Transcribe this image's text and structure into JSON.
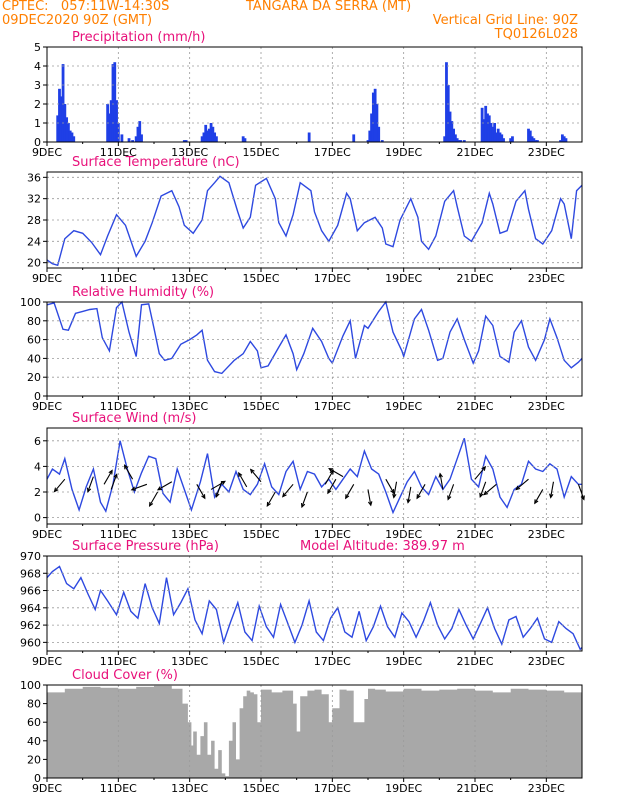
{
  "header": {
    "left1": "CPTEC:   057:11W-14:30S",
    "center1": "TANGARA DA SERRA (MT)",
    "left2": "09DEC2020 90Z (GMT)",
    "right2": "Vertical Grid Line: 90Z",
    "right3": "TQ0126L028"
  },
  "colors": {
    "header": "#ff7f00",
    "title": "#e8107a",
    "line": "#2e49e0",
    "bar": "#1f3fe6",
    "cloud": "#a8a8a8",
    "grid": "#9a9a9a",
    "arrow": "#000000"
  },
  "x_tick_labels": [
    "9DEC",
    "11DEC",
    "13DEC",
    "15DEC",
    "17DEC",
    "19DEC",
    "21DEC",
    "23DEC"
  ],
  "chart_data": [
    {
      "id": "precip",
      "type": "bar",
      "title": "Precipitation (mm/h)",
      "ylim": [
        0,
        5
      ],
      "yticks": [
        0,
        1,
        2,
        3,
        4,
        5
      ],
      "grid": true,
      "x_start": 0,
      "x_end": 15,
      "x_unit": "days since 9DEC 00Z",
      "x": [
        0.3,
        0.35,
        0.4,
        0.45,
        0.5,
        0.55,
        0.6,
        0.65,
        0.7,
        0.75,
        1.7,
        1.75,
        1.8,
        1.85,
        1.9,
        1.95,
        2.0,
        2.1,
        2.3,
        2.4,
        2.5,
        2.55,
        2.6,
        2.65,
        3.85,
        3.9,
        4.35,
        4.4,
        4.45,
        4.5,
        4.55,
        4.6,
        4.65,
        4.7,
        4.75,
        5.5,
        5.55,
        7.35,
        8.6,
        9.0,
        9.05,
        9.1,
        9.15,
        9.2,
        9.25,
        9.3,
        9.4,
        11.15,
        11.2,
        11.25,
        11.3,
        11.35,
        11.4,
        11.45,
        11.5,
        11.55,
        11.6,
        11.7,
        12.2,
        12.25,
        12.3,
        12.35,
        12.4,
        12.45,
        12.5,
        12.55,
        12.6,
        12.65,
        12.7,
        12.75,
        12.8,
        13.0,
        13.05,
        13.5,
        13.55,
        13.6,
        13.65,
        13.7,
        13.75,
        14.4,
        14.45,
        14.5,
        14.55
      ],
      "values": [
        1.4,
        2.8,
        2.4,
        4.1,
        2.0,
        1.3,
        1.0,
        0.6,
        0.5,
        0.3,
        2.0,
        1.5,
        2.2,
        4.1,
        4.2,
        2.2,
        1.0,
        0.4,
        0.2,
        0.1,
        0.3,
        0.8,
        1.1,
        0.4,
        0.1,
        0.1,
        0.3,
        0.5,
        0.9,
        0.6,
        0.7,
        1.0,
        0.8,
        0.5,
        0.3,
        0.3,
        0.2,
        0.5,
        0.4,
        0.1,
        0.6,
        1.5,
        2.6,
        2.8,
        2.0,
        0.8,
        0.1,
        0.3,
        4.2,
        3.0,
        1.6,
        1.1,
        0.7,
        0.4,
        0.2,
        0.1,
        0.1,
        0.1,
        1.8,
        1.2,
        1.9,
        1.5,
        1.4,
        1.0,
        0.8,
        1.0,
        0.5,
        0.7,
        0.5,
        0.4,
        0.2,
        0.2,
        0.3,
        0.7,
        0.6,
        0.3,
        0.2,
        0.1,
        0.1,
        0.1,
        0.4,
        0.3,
        0.2
      ]
    },
    {
      "id": "temp",
      "type": "line",
      "title": "Surface Temperature (nC)",
      "ylim": [
        19,
        37
      ],
      "yticks": [
        20,
        24,
        28,
        32,
        36
      ],
      "grid": true,
      "x_start": 0,
      "x_end": 15,
      "x": [
        0.0,
        0.15,
        0.3,
        0.5,
        0.75,
        1.0,
        1.25,
        1.5,
        1.7,
        1.95,
        2.2,
        2.5,
        2.75,
        2.95,
        3.2,
        3.5,
        3.7,
        3.85,
        4.1,
        4.35,
        4.5,
        4.7,
        4.85,
        5.1,
        5.35,
        5.5,
        5.7,
        5.85,
        6.15,
        6.4,
        6.5,
        6.7,
        6.9,
        7.1,
        7.4,
        7.5,
        7.7,
        7.9,
        8.15,
        8.4,
        8.5,
        8.7,
        8.9,
        9.2,
        9.4,
        9.5,
        9.7,
        9.9,
        10.2,
        10.4,
        10.5,
        10.7,
        10.9,
        11.15,
        11.4,
        11.5,
        11.7,
        11.9,
        12.2,
        12.4,
        12.5,
        12.7,
        12.9,
        13.15,
        13.4,
        13.5,
        13.7,
        13.9,
        14.15,
        14.4,
        14.5,
        14.7,
        14.85,
        15.0
      ],
      "values": [
        20.5,
        19.8,
        19.5,
        24.5,
        26.0,
        25.5,
        23.8,
        21.5,
        25.0,
        29.0,
        27.0,
        21.2,
        24.0,
        27.5,
        32.5,
        33.5,
        30.5,
        27.0,
        25.5,
        28.0,
        33.5,
        35.0,
        36.2,
        35.0,
        29.5,
        26.5,
        28.5,
        34.5,
        35.8,
        32.0,
        27.5,
        25.0,
        29.0,
        35.0,
        33.5,
        29.5,
        26.0,
        24.0,
        27.0,
        33.0,
        32.0,
        26.0,
        27.5,
        28.5,
        26.5,
        23.5,
        23.0,
        28.0,
        32.0,
        28.5,
        24.0,
        22.5,
        25.0,
        31.5,
        33.5,
        30.5,
        25.0,
        24.0,
        27.5,
        33.0,
        31.0,
        25.5,
        26.0,
        31.5,
        33.5,
        30.0,
        24.5,
        23.5,
        26.0,
        32.0,
        31.0,
        24.5,
        33.5,
        34.5
      ]
    },
    {
      "id": "rh",
      "type": "line",
      "title": "Relative Humidity (%)",
      "ylim": [
        0,
        100
      ],
      "yticks": [
        0,
        20,
        40,
        60,
        80,
        100
      ],
      "grid": true,
      "x_start": 0,
      "x_end": 15,
      "x": [
        0.0,
        0.2,
        0.45,
        0.6,
        0.8,
        1.0,
        1.2,
        1.4,
        1.55,
        1.75,
        1.95,
        2.1,
        2.3,
        2.5,
        2.65,
        2.85,
        3.0,
        3.15,
        3.3,
        3.5,
        3.75,
        4.0,
        4.2,
        4.35,
        4.5,
        4.7,
        4.9,
        5.0,
        5.25,
        5.5,
        5.7,
        5.9,
        6.0,
        6.2,
        6.5,
        6.7,
        6.9,
        7.0,
        7.2,
        7.45,
        7.7,
        7.9,
        8.0,
        8.3,
        8.5,
        8.65,
        8.9,
        9.0,
        9.3,
        9.5,
        9.7,
        9.95,
        10.0,
        10.3,
        10.5,
        10.7,
        10.95,
        11.1,
        11.3,
        11.5,
        11.7,
        11.95,
        12.1,
        12.3,
        12.5,
        12.7,
        12.95,
        13.1,
        13.3,
        13.5,
        13.7,
        13.95,
        14.1,
        14.3,
        14.5,
        14.7,
        14.9,
        15.0
      ],
      "values": [
        97.0,
        99.0,
        71.0,
        70.0,
        88.0,
        90.0,
        92.0,
        93.0,
        62.0,
        48.0,
        94.0,
        100.0,
        68.0,
        42.0,
        97.0,
        98.0,
        72.0,
        45.0,
        38.0,
        40.0,
        55.0,
        60.0,
        65.0,
        70.0,
        38.0,
        26.0,
        24.0,
        28.0,
        38.0,
        45.0,
        58.0,
        48.0,
        30.0,
        32.0,
        52.0,
        65.0,
        45.0,
        28.0,
        45.0,
        72.0,
        58.0,
        40.0,
        35.0,
        64.0,
        80.0,
        40.0,
        75.0,
        72.0,
        90.0,
        100.0,
        68.0,
        48.0,
        42.0,
        82.0,
        92.0,
        70.0,
        38.0,
        40.0,
        68.0,
        82.0,
        60.0,
        35.0,
        48.0,
        85.0,
        75.0,
        42.0,
        36.0,
        68.0,
        80.0,
        52.0,
        38.0,
        60.0,
        82.0,
        62.0,
        38.0,
        30.0,
        36.0,
        40.0
      ]
    },
    {
      "id": "wind",
      "type": "line",
      "title": "Surface Wind (m/s)",
      "ylim": [
        -0.5,
        7
      ],
      "yticks": [
        0,
        2,
        4,
        6
      ],
      "grid": true,
      "x_start": 0,
      "x_end": 15,
      "x": [
        0.0,
        0.15,
        0.35,
        0.5,
        0.7,
        0.9,
        1.1,
        1.3,
        1.5,
        1.65,
        1.85,
        2.05,
        2.25,
        2.45,
        2.65,
        2.85,
        3.05,
        3.25,
        3.45,
        3.65,
        3.85,
        4.05,
        4.3,
        4.5,
        4.7,
        4.9,
        5.1,
        5.3,
        5.5,
        5.7,
        5.9,
        6.1,
        6.3,
        6.5,
        6.7,
        6.9,
        7.1,
        7.3,
        7.5,
        7.7,
        7.9,
        8.1,
        8.3,
        8.5,
        8.7,
        8.9,
        9.1,
        9.3,
        9.5,
        9.7,
        9.9,
        10.1,
        10.3,
        10.5,
        10.7,
        10.9,
        11.1,
        11.3,
        11.5,
        11.7,
        11.9,
        12.1,
        12.3,
        12.5,
        12.7,
        12.9,
        13.1,
        13.3,
        13.5,
        13.7,
        13.9,
        14.1,
        14.3,
        14.5,
        14.7,
        14.9,
        15.0
      ],
      "values": [
        3.0,
        3.8,
        3.4,
        4.6,
        2.2,
        0.6,
        2.4,
        3.8,
        1.2,
        0.5,
        2.6,
        6.0,
        3.8,
        2.0,
        3.5,
        4.8,
        4.6,
        1.9,
        1.2,
        3.8,
        2.2,
        0.6,
        2.8,
        5.0,
        1.6,
        2.6,
        2.0,
        3.6,
        2.2,
        1.8,
        2.6,
        4.2,
        2.4,
        1.8,
        3.6,
        4.4,
        2.2,
        3.6,
        3.4,
        2.4,
        3.0,
        2.2,
        3.0,
        3.8,
        3.2,
        5.2,
        3.8,
        3.4,
        2.0,
        0.4,
        1.6,
        2.8,
        3.6,
        2.4,
        1.8,
        3.2,
        2.2,
        3.0,
        4.6,
        6.2,
        3.0,
        2.4,
        4.8,
        3.8,
        1.6,
        0.8,
        2.2,
        2.6,
        4.4,
        3.8,
        3.6,
        4.2,
        3.8,
        1.6,
        3.2,
        2.6,
        2.6
      ]
    },
    {
      "id": "wind_dir",
      "type": "scatter",
      "title": "Surface Wind (m/s)",
      "ylim": [
        -0.5,
        7
      ],
      "x": [
        0.5,
        1.3,
        1.6,
        1.8,
        2.4,
        2.8,
        3.1,
        3.5,
        4.2,
        4.6,
        4.9,
        5.6,
        6.0,
        6.4,
        6.9,
        7.3,
        7.8,
        8.1,
        8.3,
        8.6,
        9.0,
        9.5,
        9.8,
        10.2,
        10.6,
        11.1,
        11.4,
        12.0,
        12.3,
        12.6,
        13.5,
        13.9,
        14.2,
        14.9
      ],
      "values": [
        3.0,
        3.2,
        2.6,
        2.2,
        3.0,
        2.6,
        2.0,
        2.8,
        2.6,
        2.2,
        2.8,
        2.4,
        2.8,
        2.0,
        2.6,
        2.0,
        2.6,
        3.0,
        3.2,
        2.6,
        2.2,
        3.0,
        2.8,
        2.4,
        2.6,
        2.2,
        2.6,
        3.0,
        2.8,
        2.6,
        3.0,
        2.2,
        2.8,
        2.6
      ],
      "dir_deg": [
        220,
        200,
        30,
        20,
        330,
        250,
        210,
        240,
        150,
        60,
        200,
        330,
        320,
        210,
        220,
        200,
        30,
        210,
        300,
        210,
        170,
        150,
        190,
        190,
        210,
        350,
        200,
        40,
        200,
        230,
        230,
        210,
        190,
        160
      ]
    },
    {
      "id": "pres",
      "type": "line",
      "title": "Surface Pressure (hPa)",
      "annotation": "Model Altitude: 389.97 m",
      "ylim": [
        959,
        970
      ],
      "yticks": [
        960,
        962,
        964,
        966,
        968,
        970
      ],
      "grid": true,
      "x_start": 0,
      "x_end": 15,
      "x": [
        0.0,
        0.15,
        0.35,
        0.55,
        0.75,
        0.95,
        1.15,
        1.35,
        1.5,
        1.7,
        1.95,
        2.15,
        2.35,
        2.55,
        2.75,
        2.95,
        3.15,
        3.35,
        3.55,
        3.75,
        3.95,
        4.15,
        4.35,
        4.55,
        4.75,
        4.95,
        5.15,
        5.35,
        5.55,
        5.75,
        5.95,
        6.15,
        6.35,
        6.55,
        6.75,
        6.95,
        7.15,
        7.35,
        7.55,
        7.75,
        7.95,
        8.15,
        8.35,
        8.55,
        8.75,
        8.95,
        9.15,
        9.35,
        9.55,
        9.75,
        9.95,
        10.15,
        10.35,
        10.55,
        10.75,
        10.95,
        11.15,
        11.35,
        11.55,
        11.75,
        11.95,
        12.15,
        12.35,
        12.55,
        12.75,
        12.95,
        13.15,
        13.35,
        13.55,
        13.75,
        13.95,
        14.15,
        14.35,
        14.55,
        14.75,
        14.95,
        15.0
      ],
      "values": [
        967.5,
        968.2,
        968.8,
        966.8,
        966.2,
        967.5,
        965.6,
        963.8,
        966.0,
        964.8,
        963.2,
        965.8,
        963.6,
        962.8,
        966.8,
        964.0,
        962.2,
        967.5,
        963.2,
        964.6,
        966.2,
        962.6,
        961.0,
        964.8,
        963.8,
        960.0,
        962.4,
        964.6,
        961.2,
        960.2,
        964.2,
        961.8,
        960.6,
        964.4,
        962.2,
        960.0,
        962.0,
        964.8,
        961.2,
        960.2,
        962.8,
        964.0,
        961.2,
        960.6,
        963.6,
        960.2,
        961.8,
        964.2,
        961.8,
        960.6,
        963.4,
        962.4,
        960.6,
        962.4,
        964.6,
        962.0,
        960.4,
        961.6,
        963.8,
        962.0,
        960.4,
        962.2,
        964.0,
        961.6,
        959.8,
        962.6,
        963.0,
        960.6,
        961.6,
        962.8,
        960.4,
        960.0,
        962.4,
        961.6,
        961.0,
        959.2,
        959.4
      ]
    },
    {
      "id": "cloud",
      "type": "area",
      "title": "Cloud Cover (%)",
      "ylim": [
        0,
        100
      ],
      "yticks": [
        0,
        20,
        40,
        60,
        80,
        100
      ],
      "grid": false,
      "x_start": 0,
      "x_end": 15,
      "x": [
        0.0,
        0.5,
        1.0,
        1.5,
        2.0,
        2.5,
        3.0,
        3.5,
        3.8,
        3.95,
        4.05,
        4.1,
        4.2,
        4.3,
        4.4,
        4.5,
        4.6,
        4.7,
        4.8,
        4.9,
        5.0,
        5.1,
        5.2,
        5.3,
        5.4,
        5.5,
        5.6,
        5.7,
        5.8,
        5.9,
        6.0,
        6.3,
        6.6,
        6.9,
        7.0,
        7.1,
        7.3,
        7.5,
        7.7,
        7.9,
        8.0,
        8.2,
        8.4,
        8.6,
        8.9,
        9.0,
        9.2,
        9.5,
        10.0,
        10.5,
        11.0,
        11.5,
        12.0,
        12.5,
        13.0,
        13.5,
        14.0,
        14.5,
        15.0
      ],
      "values": [
        92,
        96,
        98,
        97,
        96,
        98,
        99,
        96,
        80,
        60,
        35,
        50,
        25,
        45,
        60,
        25,
        40,
        10,
        30,
        5,
        2,
        40,
        60,
        20,
        75,
        88,
        94,
        92,
        90,
        60,
        95,
        92,
        94,
        80,
        50,
        88,
        94,
        95,
        90,
        60,
        75,
        95,
        94,
        60,
        85,
        96,
        95,
        93,
        96,
        94,
        95,
        96,
        94,
        92,
        96,
        95,
        94,
        92,
        88
      ]
    }
  ]
}
